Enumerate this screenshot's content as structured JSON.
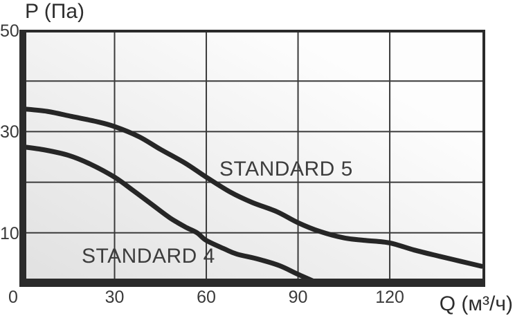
{
  "chart_data": {
    "type": "line",
    "title": "",
    "xlabel": "Q (м³/ч)",
    "ylabel": "P (Па)",
    "xlim": [
      0,
      151
    ],
    "ylim": [
      0,
      50
    ],
    "x_ticks": [
      0,
      30,
      60,
      90,
      120
    ],
    "y_ticks": [
      50,
      30,
      10
    ],
    "grid_x": [
      30,
      60,
      90,
      120
    ],
    "grid_y": [
      40,
      30,
      20,
      10
    ],
    "grid": true,
    "legend_position": "inline-labels",
    "series": [
      {
        "name": "STANDARD 5",
        "points": [
          [
            0,
            34.5
          ],
          [
            8,
            34
          ],
          [
            16,
            33
          ],
          [
            24,
            32
          ],
          [
            30,
            31
          ],
          [
            38,
            29
          ],
          [
            45,
            26.5
          ],
          [
            53,
            23.8
          ],
          [
            60,
            21
          ],
          [
            68,
            18
          ],
          [
            75,
            16
          ],
          [
            83,
            14.2
          ],
          [
            90,
            12
          ],
          [
            97,
            10.3
          ],
          [
            105,
            9
          ],
          [
            112,
            8.5
          ],
          [
            120,
            8
          ],
          [
            128,
            6.6
          ],
          [
            136,
            5.4
          ],
          [
            143,
            4.4
          ],
          [
            150,
            3.4
          ]
        ]
      },
      {
        "name": "STANDARD 4",
        "points": [
          [
            0,
            27
          ],
          [
            7,
            26.4
          ],
          [
            15,
            25.3
          ],
          [
            22,
            23.6
          ],
          [
            30,
            21
          ],
          [
            36,
            18.4
          ],
          [
            42,
            15.7
          ],
          [
            48,
            13
          ],
          [
            53,
            11.2
          ],
          [
            57,
            10
          ],
          [
            60,
            8.5
          ],
          [
            66,
            6.8
          ],
          [
            70,
            5.8
          ],
          [
            77,
            4.8
          ],
          [
            84,
            3.5
          ],
          [
            90,
            1.8
          ],
          [
            96,
            0.2
          ]
        ]
      }
    ],
    "colors": {
      "curve": "#262626",
      "grid": "#3a3a3a",
      "frame": "#2b2b2b",
      "plot_bg_from": "#e0e0e0",
      "plot_bg_to": "#fdfdfd",
      "text": "#3a3a3a"
    }
  }
}
